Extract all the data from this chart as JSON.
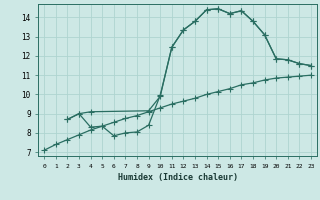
{
  "xlabel": "Humidex (Indice chaleur)",
  "bg_color": "#cde8e5",
  "grid_color": "#afd4d0",
  "line_color": "#2a6e62",
  "xlim": [
    -0.5,
    23.5
  ],
  "ylim": [
    6.8,
    14.7
  ],
  "xticks": [
    0,
    1,
    2,
    3,
    4,
    5,
    6,
    7,
    8,
    9,
    10,
    11,
    12,
    13,
    14,
    15,
    16,
    17,
    18,
    19,
    20,
    21,
    22,
    23
  ],
  "yticks": [
    7,
    8,
    9,
    10,
    11,
    12,
    13,
    14
  ],
  "line1_x": [
    0,
    1,
    2,
    3,
    4,
    5,
    6,
    7,
    8,
    9,
    10,
    11,
    12,
    13,
    14,
    15,
    16,
    17,
    18,
    19,
    20,
    21,
    22,
    23
  ],
  "line1_y": [
    7.1,
    7.4,
    7.65,
    7.9,
    8.15,
    8.35,
    8.55,
    8.75,
    8.9,
    9.1,
    9.3,
    9.5,
    9.65,
    9.8,
    10.0,
    10.15,
    10.3,
    10.5,
    10.6,
    10.75,
    10.85,
    10.9,
    10.95,
    11.0
  ],
  "line2_x": [
    2,
    3,
    4,
    9,
    10,
    11,
    12,
    13,
    14,
    15,
    16,
    17,
    18,
    19,
    20,
    21,
    22,
    23
  ],
  "line2_y": [
    8.7,
    9.0,
    9.1,
    9.15,
    9.9,
    12.45,
    13.35,
    13.8,
    14.4,
    14.45,
    14.2,
    14.35,
    13.8,
    13.1,
    11.85,
    11.8,
    11.6,
    11.5
  ],
  "line3_x": [
    2,
    3,
    4,
    5,
    6,
    7,
    8,
    9,
    10,
    11,
    12,
    13,
    14,
    15,
    16,
    17,
    18,
    19,
    20,
    21,
    22,
    23
  ],
  "line3_y": [
    8.7,
    9.0,
    8.3,
    8.35,
    7.85,
    8.0,
    8.05,
    8.4,
    9.95,
    12.45,
    13.35,
    13.8,
    14.4,
    14.45,
    14.2,
    14.35,
    13.8,
    13.1,
    11.85,
    11.8,
    11.6,
    11.5
  ],
  "markersize": 2.5,
  "linewidth": 0.9
}
